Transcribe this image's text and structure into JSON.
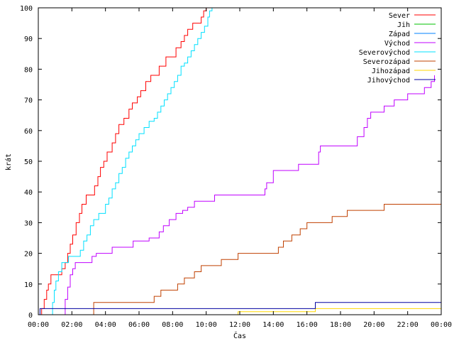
{
  "chart_data": {
    "type": "line",
    "xlabel": "Čas",
    "ylabel": "krát",
    "xlim": [
      0,
      24
    ],
    "ylim": [
      0,
      100
    ],
    "x_ticks": [
      "00:00",
      "02:00",
      "04:00",
      "06:00",
      "08:00",
      "10:00",
      "12:00",
      "14:00",
      "16:00",
      "18:00",
      "20:00",
      "22:00",
      "00:00"
    ],
    "y_ticks": [
      "0",
      "10",
      "20",
      "30",
      "40",
      "50",
      "60",
      "70",
      "80",
      "90",
      "100"
    ],
    "grid": false,
    "legend_position": "top-right",
    "step": true,
    "series": [
      {
        "name": "Sever",
        "color": "#ff0000",
        "x": [
          0.0,
          0.2,
          0.35,
          0.5,
          0.6,
          0.75,
          0.9,
          1.4,
          1.6,
          1.75,
          1.9,
          2.05,
          2.25,
          2.45,
          2.6,
          2.85,
          3.1,
          3.35,
          3.55,
          3.7,
          3.9,
          4.1,
          4.4,
          4.6,
          4.8,
          5.1,
          5.4,
          5.6,
          5.9,
          6.1,
          6.4,
          6.7,
          6.9,
          7.2,
          7.6,
          7.9,
          8.2,
          8.5,
          8.7,
          8.9,
          9.2,
          9.5,
          9.7,
          9.85,
          10.0
        ],
        "y": [
          0,
          2,
          5,
          8,
          10,
          13,
          13,
          15,
          17,
          20,
          23,
          26,
          30,
          33,
          36,
          39,
          39,
          42,
          45,
          48,
          50,
          53,
          56,
          59,
          62,
          64,
          67,
          69,
          71,
          73,
          76,
          78,
          78,
          81,
          84,
          84,
          87,
          89,
          91,
          93,
          95,
          95,
          97,
          99,
          100
        ]
      },
      {
        "name": "Jih",
        "color": "#00c000",
        "x": [
          0,
          24
        ],
        "y": [
          0,
          0
        ]
      },
      {
        "name": "Západ",
        "color": "#0080ff",
        "x": [
          0,
          24
        ],
        "y": [
          0,
          0
        ]
      },
      {
        "name": "Východ",
        "color": "#c000ff",
        "x": [
          0.0,
          1.6,
          1.75,
          1.9,
          2.05,
          2.2,
          2.4,
          3.2,
          3.45,
          3.65,
          4.4,
          5.3,
          5.65,
          6.0,
          6.6,
          7.2,
          7.45,
          7.8,
          8.2,
          8.6,
          8.9,
          9.3,
          10.5,
          13.5,
          13.6,
          14.0,
          15.0,
          15.5,
          16.7,
          16.8,
          17.5,
          19.0,
          19.4,
          19.6,
          19.8,
          20.6,
          21.2,
          22.0,
          23.0,
          23.4,
          23.6
        ],
        "y": [
          0,
          5,
          9,
          13,
          15,
          17,
          17,
          19,
          20,
          20,
          22,
          22,
          24,
          24,
          25,
          27,
          29,
          31,
          33,
          34,
          35,
          37,
          39,
          41,
          43,
          47,
          47,
          49,
          53,
          55,
          55,
          58,
          61,
          64,
          66,
          68,
          70,
          72,
          74,
          76,
          78
        ]
      },
      {
        "name": "Severovýchod",
        "color": "#00e0ff",
        "x": [
          0.0,
          0.85,
          0.95,
          1.05,
          1.2,
          1.4,
          1.6,
          1.8,
          2.1,
          2.5,
          2.7,
          2.9,
          3.1,
          3.3,
          3.6,
          3.8,
          4.0,
          4.2,
          4.4,
          4.6,
          4.8,
          5.0,
          5.2,
          5.4,
          5.6,
          5.8,
          6.0,
          6.3,
          6.6,
          6.9,
          7.1,
          7.3,
          7.5,
          7.7,
          7.9,
          8.1,
          8.3,
          8.5,
          8.7,
          8.9,
          9.1,
          9.3,
          9.5,
          9.7,
          9.9,
          10.1,
          10.2,
          10.35,
          10.5
        ],
        "y": [
          0,
          4,
          8,
          11,
          14,
          17,
          17,
          19,
          19,
          21,
          24,
          26,
          29,
          31,
          33,
          33,
          36,
          38,
          41,
          43,
          46,
          48,
          51,
          53,
          55,
          57,
          59,
          61,
          63,
          64,
          66,
          68,
          70,
          72,
          74,
          76,
          78,
          81,
          82,
          84,
          86,
          88,
          90,
          92,
          94,
          97,
          99,
          100,
          100
        ]
      },
      {
        "name": "Severozápad",
        "color": "#c04000",
        "x": [
          0.0,
          3.3,
          6.9,
          7.3,
          8.3,
          8.7,
          9.3,
          9.7,
          10.9,
          11.9,
          12.4,
          14.3,
          14.6,
          15.1,
          15.6,
          16.0,
          16.5,
          17.5,
          18.4,
          19.1,
          20.6,
          24.0
        ],
        "y": [
          0,
          4,
          6,
          8,
          10,
          12,
          14,
          16,
          18,
          20,
          20,
          22,
          24,
          26,
          28,
          30,
          30,
          32,
          34,
          34,
          36,
          36
        ]
      },
      {
        "name": "Jihozápad",
        "color": "#ffd700",
        "x": [
          0.0,
          11.9,
          16.5,
          24.0
        ],
        "y": [
          0,
          1,
          2,
          2
        ]
      },
      {
        "name": "Jihovýchod",
        "color": "#0000a0",
        "x": [
          0.0,
          0.1,
          16.5,
          24.0
        ],
        "y": [
          0,
          2,
          4,
          4
        ]
      }
    ]
  }
}
